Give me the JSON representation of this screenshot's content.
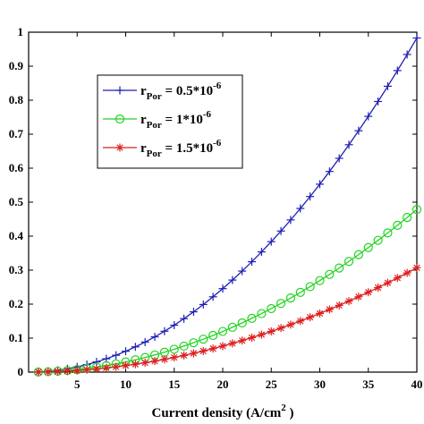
{
  "chart_data": {
    "type": "line",
    "title": "",
    "xlabel": "Current density (A/cm",
    "xlabel_sup": "2",
    "xlabel_close": " )",
    "ylabel": "",
    "xlim": [
      0,
      40
    ],
    "ylim": [
      0,
      1
    ],
    "x_ticks": [
      5,
      10,
      15,
      20,
      25,
      30,
      35,
      40
    ],
    "y_ticks": [
      0,
      0.1,
      0.2,
      0.3,
      0.4,
      0.5,
      0.6,
      0.7,
      0.8,
      0.9,
      1
    ],
    "grid": false,
    "legend_position": "top-left",
    "x": [
      1,
      2,
      3,
      4,
      5,
      6,
      7,
      8,
      9,
      10,
      11,
      12,
      13,
      14,
      15,
      16,
      17,
      18,
      19,
      20,
      21,
      22,
      23,
      24,
      25,
      26,
      27,
      28,
      29,
      30,
      31,
      32,
      33,
      34,
      35,
      36,
      37,
      38,
      39,
      40
    ],
    "series": [
      {
        "name_main": "r",
        "name_sub": "Por",
        "name_value": " = 0.5*10",
        "name_sup": "-6",
        "color": "#1f1fb4",
        "marker": "plus",
        "values": [
          0.0006,
          0.0025,
          0.0055,
          0.0098,
          0.0153,
          0.0221,
          0.0301,
          0.0393,
          0.0497,
          0.0614,
          0.0743,
          0.0884,
          0.1037,
          0.1203,
          0.1381,
          0.1572,
          0.1774,
          0.1989,
          0.2216,
          0.2456,
          0.2708,
          0.2972,
          0.3248,
          0.3537,
          0.3838,
          0.4151,
          0.4477,
          0.4815,
          0.5165,
          0.5528,
          0.5903,
          0.629,
          0.6689,
          0.7101,
          0.7525,
          0.7961,
          0.841,
          0.8871,
          0.9344,
          0.983
        ]
      },
      {
        "name_main": "r",
        "name_sub": "Por",
        "name_value": " = 1*10",
        "name_sup": "-6",
        "color": "#22d422",
        "marker": "circle",
        "values": [
          0.0003,
          0.0012,
          0.0027,
          0.0048,
          0.0075,
          0.0108,
          0.0147,
          0.0191,
          0.0242,
          0.0299,
          0.0362,
          0.043,
          0.0505,
          0.0586,
          0.0673,
          0.0765,
          0.0864,
          0.0969,
          0.1079,
          0.1196,
          0.1319,
          0.1447,
          0.1582,
          0.1722,
          0.1869,
          0.2021,
          0.218,
          0.2345,
          0.2515,
          0.2692,
          0.2874,
          0.3063,
          0.3257,
          0.3458,
          0.3664,
          0.3877,
          0.4095,
          0.432,
          0.455,
          0.4787
        ]
      },
      {
        "name_main": "r",
        "name_sub": "Por",
        "name_value": " = 1.5*10",
        "name_sup": "-6",
        "color": "#dd1f1f",
        "marker": "asterisk",
        "values": [
          0.0002,
          0.0008,
          0.0017,
          0.0031,
          0.0048,
          0.0069,
          0.0094,
          0.0123,
          0.0155,
          0.0192,
          0.0232,
          0.0276,
          0.0324,
          0.0376,
          0.0431,
          0.0491,
          0.0554,
          0.0621,
          0.0692,
          0.0767,
          0.0846,
          0.0928,
          0.1014,
          0.1104,
          0.1198,
          0.1296,
          0.1398,
          0.1503,
          0.1613,
          0.1726,
          0.1843,
          0.1964,
          0.2089,
          0.2217,
          0.235,
          0.2486,
          0.2626,
          0.277,
          0.2918,
          0.307
        ]
      }
    ]
  }
}
